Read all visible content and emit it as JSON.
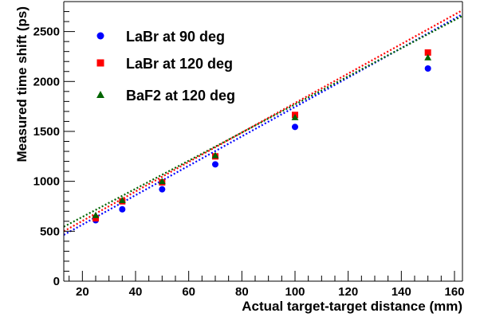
{
  "chart_data": {
    "type": "scatter",
    "title": "",
    "xlabel": "Actual target-target distance (mm)",
    "ylabel": "Measured time shift (ps)",
    "xlim": [
      13,
      163
    ],
    "ylim": [
      0,
      2800
    ],
    "x_ticks": [
      20,
      40,
      60,
      80,
      100,
      120,
      140,
      160
    ],
    "y_ticks": [
      0,
      500,
      1000,
      1500,
      2000,
      2500
    ],
    "grid": false,
    "legend_position": "top-left",
    "series": [
      {
        "name": "LaBr at 90 deg",
        "marker": "circle",
        "color": "#0000ff",
        "x": [
          25,
          35,
          50,
          70,
          100,
          150
        ],
        "y": [
          610,
          720,
          920,
          1170,
          1545,
          2130
        ],
        "fit": {
          "slope": 14.73,
          "intercept": 272
        }
      },
      {
        "name": "LaBr at 120 deg",
        "marker": "square",
        "color": "#ff0000",
        "x": [
          25,
          35,
          50,
          70,
          100,
          150
        ],
        "y": [
          630,
          800,
          990,
          1250,
          1665,
          2290
        ],
        "fit": {
          "slope": 14.76,
          "intercept": 308
        }
      },
      {
        "name": "BaF2 at 120 deg",
        "marker": "triangle",
        "color": "#006400",
        "x": [
          25,
          35,
          50,
          70,
          100,
          150
        ],
        "y": [
          660,
          810,
          1000,
          1260,
          1640,
          2240
        ],
        "fit": {
          "slope": 14.08,
          "intercept": 362
        }
      }
    ]
  }
}
